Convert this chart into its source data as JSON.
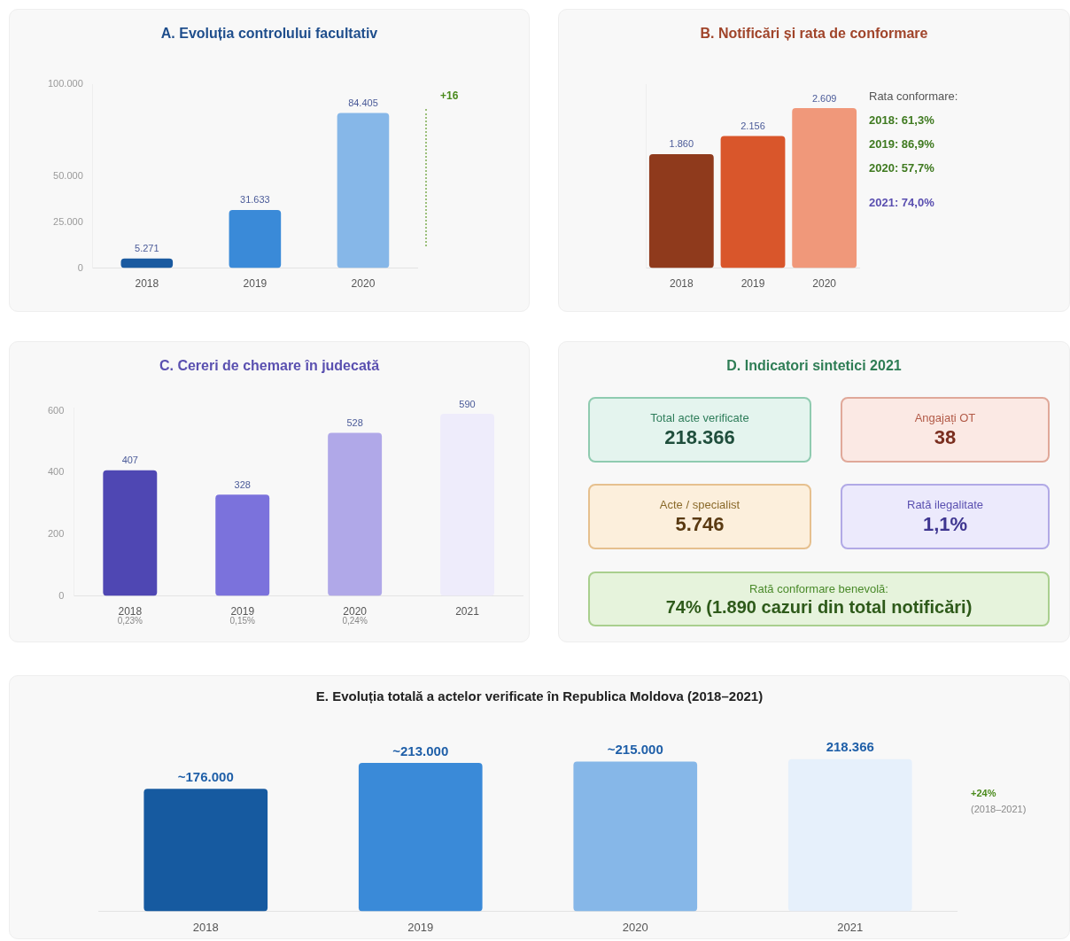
{
  "chart_data": [
    {
      "type": "bar",
      "title": "A. Evoluția controlului facultativ",
      "categories": [
        "2018",
        "2019",
        "2020"
      ],
      "values": [
        5271,
        31633,
        84405
      ],
      "value_labels": [
        "5.271",
        "31.633",
        "84.405"
      ],
      "colors": [
        "#1a5aa0",
        "#3a8ad8",
        "#86b7e8"
      ],
      "ylim": [
        0,
        100000
      ],
      "yticks": [
        0,
        {
          "value": 25000,
          "label": "25.000"
        },
        {
          "value": 50000,
          "label": "50.000"
        },
        {
          "value": 100000,
          "label": "100.000"
        }
      ],
      "annotations": [
        "+16"
      ]
    },
    {
      "type": "bar",
      "title": "B. Notificări și rata de conformare",
      "categories": [
        "2018",
        "2019",
        "2020"
      ],
      "values": [
        1860,
        2156,
        2609
      ],
      "value_labels": [
        "1.860",
        "2.156",
        "2.609"
      ],
      "colors": [
        "#8f3a1c",
        "#d9562b",
        "#f0987a"
      ],
      "tick_labels": "x",
      "annotations": [
        "Rata conformare:",
        "2018: 61,3%",
        "2019: 86,9%",
        "2020: 57,7%",
        "2021: 74,0%"
      ]
    },
    {
      "type": "bar",
      "title": "C. Cereri de chemare în judecată",
      "categories": [
        "2018",
        "2019",
        "2020",
        "2021"
      ],
      "values": [
        407,
        328,
        528,
        590
      ],
      "value_labels": [
        "407",
        "328",
        "528",
        "590"
      ],
      "colors": [
        "#4f47b3",
        "#7b72dc",
        "#b0a8e8",
        "#eeecfb"
      ],
      "ylim": [
        0,
        610
      ],
      "yticks": [
        0,
        200,
        400,
        600
      ],
      "annotations": [
        "0,23%",
        "0,15%",
        "0,24%"
      ]
    },
    {
      "type": "other",
      "title": "D. Indicatori sintetici 2021",
      "annotations": [
        "Total acte verificate",
        "218.366",
        "Angajați OT",
        "38",
        "Acte / specialist",
        "5.746",
        "Rată ilegalitate",
        "1,1%",
        "Rată conformare benevolă:",
        "74% (1.890 cazuri din total notificări)"
      ]
    },
    {
      "type": "bar",
      "title": "E. Evoluția totală a actelor verificate în Republica Moldova (2018–2021)",
      "categories": [
        "2018",
        "2019",
        "2020",
        "2021"
      ],
      "values": [
        176000,
        213000,
        215000,
        218366
      ],
      "value_labels": [
        "~176.000",
        "~213.000",
        "~215.000",
        "218.366"
      ],
      "colors": [
        "#165aa0",
        "#3a8ad8",
        "#86b7e8",
        "#e6f0fb"
      ],
      "tick_labels": "x",
      "annotations": [
        "+24%",
        "(2018–2021)"
      ]
    }
  ]
}
